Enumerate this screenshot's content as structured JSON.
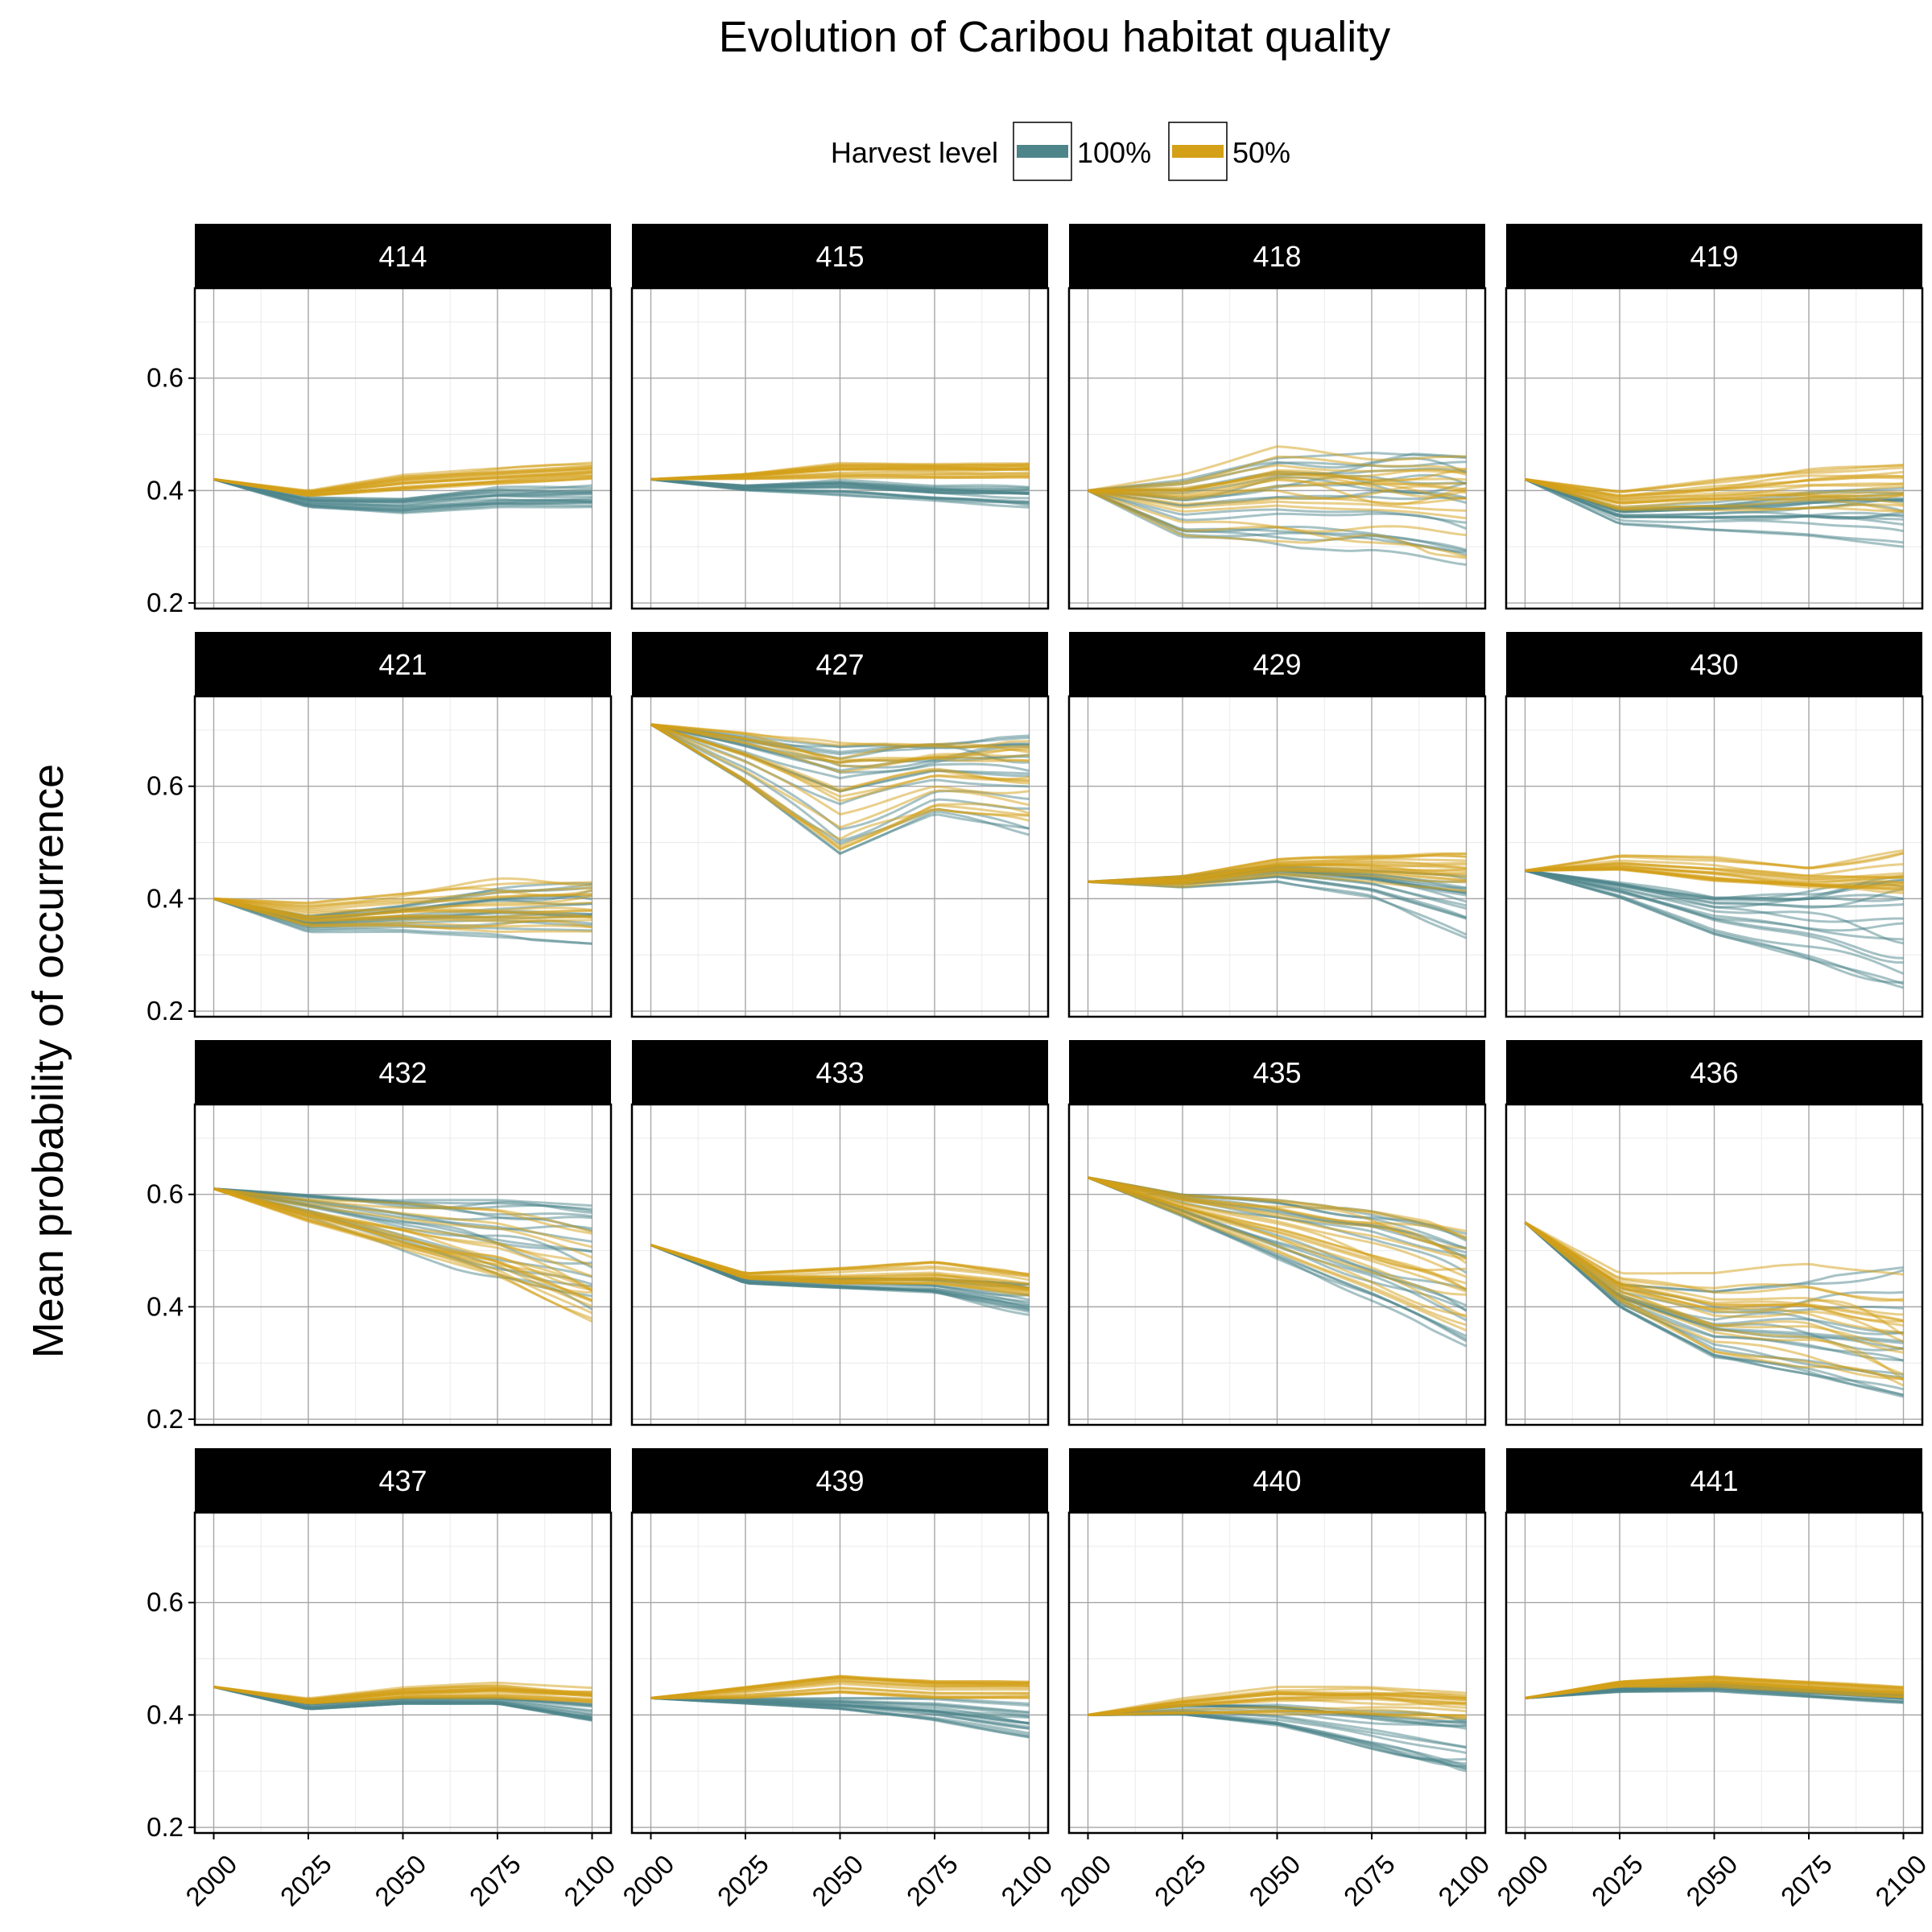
{
  "chart_data": {
    "type": "line",
    "title": "Evolution of Caribou habitat quality",
    "ylabel": "Mean probability of occurrence",
    "xlabel": "",
    "legend": {
      "title": "Harvest level",
      "position": "top",
      "entries": [
        {
          "name": "100%",
          "color": "#4d858b"
        },
        {
          "name": "50%",
          "color": "#d4a017"
        }
      ]
    },
    "x_ticks": [
      2000,
      2025,
      2050,
      2075,
      2100
    ],
    "y_ticks": [
      0.2,
      0.4,
      0.6
    ],
    "xlim": [
      1995,
      2105
    ],
    "ylim": [
      0.19,
      0.76
    ],
    "grid": true,
    "facets": [
      {
        "label": "414",
        "series": [
          {
            "name": "100%",
            "x": [
              2000,
              2025,
              2050,
              2075,
              2100
            ],
            "y_low": [
              0.42,
              0.37,
              0.36,
              0.37,
              0.37
            ],
            "y_high": [
              0.42,
              0.39,
              0.39,
              0.41,
              0.41
            ]
          },
          {
            "name": "50%",
            "x": [
              2000,
              2025,
              2050,
              2075,
              2100
            ],
            "y_low": [
              0.42,
              0.39,
              0.4,
              0.41,
              0.42
            ],
            "y_high": [
              0.42,
              0.4,
              0.43,
              0.44,
              0.45
            ]
          }
        ]
      },
      {
        "label": "415",
        "series": [
          {
            "name": "100%",
            "x": [
              2000,
              2025,
              2050,
              2075,
              2100
            ],
            "y_low": [
              0.42,
              0.4,
              0.39,
              0.38,
              0.37
            ],
            "y_high": [
              0.42,
              0.41,
              0.42,
              0.41,
              0.41
            ]
          },
          {
            "name": "50%",
            "x": [
              2000,
              2025,
              2050,
              2075,
              2100
            ],
            "y_low": [
              0.42,
              0.42,
              0.42,
              0.42,
              0.42
            ],
            "y_high": [
              0.42,
              0.43,
              0.45,
              0.45,
              0.45
            ]
          }
        ]
      },
      {
        "label": "418",
        "series": [
          {
            "name": "100%",
            "x": [
              2000,
              2025,
              2050,
              2075,
              2100
            ],
            "y_low": [
              0.4,
              0.31,
              0.3,
              0.29,
              0.26
            ],
            "y_high": [
              0.4,
              0.42,
              0.46,
              0.47,
              0.46
            ]
          },
          {
            "name": "50%",
            "x": [
              2000,
              2025,
              2050,
              2075,
              2100
            ],
            "y_low": [
              0.4,
              0.32,
              0.31,
              0.3,
              0.28
            ],
            "y_high": [
              0.4,
              0.44,
              0.49,
              0.48,
              0.48
            ]
          }
        ]
      },
      {
        "label": "419",
        "series": [
          {
            "name": "100%",
            "x": [
              2000,
              2025,
              2050,
              2075,
              2100
            ],
            "y_low": [
              0.42,
              0.34,
              0.33,
              0.32,
              0.3
            ],
            "y_high": [
              0.42,
              0.37,
              0.38,
              0.4,
              0.41
            ]
          },
          {
            "name": "50%",
            "x": [
              2000,
              2025,
              2050,
              2075,
              2100
            ],
            "y_low": [
              0.42,
              0.36,
              0.36,
              0.36,
              0.35
            ],
            "y_high": [
              0.42,
              0.4,
              0.42,
              0.44,
              0.45
            ]
          }
        ]
      },
      {
        "label": "421",
        "series": [
          {
            "name": "100%",
            "x": [
              2000,
              2025,
              2050,
              2075,
              2100
            ],
            "y_low": [
              0.4,
              0.34,
              0.34,
              0.33,
              0.32
            ],
            "y_high": [
              0.4,
              0.37,
              0.39,
              0.42,
              0.43
            ]
          },
          {
            "name": "50%",
            "x": [
              2000,
              2025,
              2050,
              2075,
              2100
            ],
            "y_low": [
              0.4,
              0.35,
              0.35,
              0.34,
              0.34
            ],
            "y_high": [
              0.4,
              0.4,
              0.42,
              0.44,
              0.45
            ]
          }
        ]
      },
      {
        "label": "427",
        "series": [
          {
            "name": "100%",
            "x": [
              2000,
              2025,
              2050,
              2075,
              2100
            ],
            "y_low": [
              0.71,
              0.6,
              0.46,
              0.54,
              0.51
            ],
            "y_high": [
              0.71,
              0.69,
              0.67,
              0.68,
              0.69
            ]
          },
          {
            "name": "50%",
            "x": [
              2000,
              2025,
              2050,
              2075,
              2100
            ],
            "y_low": [
              0.71,
              0.6,
              0.47,
              0.55,
              0.53
            ],
            "y_high": [
              0.71,
              0.7,
              0.68,
              0.68,
              0.68
            ]
          }
        ]
      },
      {
        "label": "429",
        "series": [
          {
            "name": "100%",
            "x": [
              2000,
              2025,
              2050,
              2075,
              2100
            ],
            "y_low": [
              0.43,
              0.42,
              0.43,
              0.4,
              0.33
            ],
            "y_high": [
              0.43,
              0.44,
              0.46,
              0.45,
              0.44
            ]
          },
          {
            "name": "50%",
            "x": [
              2000,
              2025,
              2050,
              2075,
              2100
            ],
            "y_low": [
              0.43,
              0.42,
              0.44,
              0.43,
              0.41
            ],
            "y_high": [
              0.43,
              0.44,
              0.47,
              0.48,
              0.48
            ]
          }
        ]
      },
      {
        "label": "430",
        "series": [
          {
            "name": "100%",
            "x": [
              2000,
              2025,
              2050,
              2075,
              2100
            ],
            "y_low": [
              0.45,
              0.4,
              0.33,
              0.28,
              0.23
            ],
            "y_high": [
              0.45,
              0.43,
              0.41,
              0.42,
              0.44
            ]
          },
          {
            "name": "50%",
            "x": [
              2000,
              2025,
              2050,
              2075,
              2100
            ],
            "y_low": [
              0.45,
              0.45,
              0.43,
              0.42,
              0.41
            ],
            "y_high": [
              0.45,
              0.48,
              0.48,
              0.46,
              0.49
            ]
          }
        ]
      },
      {
        "label": "432",
        "series": [
          {
            "name": "100%",
            "x": [
              2000,
              2025,
              2050,
              2075,
              2100
            ],
            "y_low": [
              0.61,
              0.56,
              0.5,
              0.44,
              0.39
            ],
            "y_high": [
              0.61,
              0.6,
              0.59,
              0.59,
              0.58
            ]
          },
          {
            "name": "50%",
            "x": [
              2000,
              2025,
              2050,
              2075,
              2100
            ],
            "y_low": [
              0.61,
              0.55,
              0.5,
              0.45,
              0.37
            ],
            "y_high": [
              0.61,
              0.6,
              0.6,
              0.6,
              0.58
            ]
          }
        ]
      },
      {
        "label": "433",
        "series": [
          {
            "name": "100%",
            "x": [
              2000,
              2025,
              2050,
              2075,
              2100
            ],
            "y_low": [
              0.51,
              0.44,
              0.43,
              0.42,
              0.38
            ],
            "y_high": [
              0.51,
              0.45,
              0.45,
              0.45,
              0.44
            ]
          },
          {
            "name": "50%",
            "x": [
              2000,
              2025,
              2050,
              2075,
              2100
            ],
            "y_low": [
              0.51,
              0.45,
              0.44,
              0.44,
              0.42
            ],
            "y_high": [
              0.51,
              0.46,
              0.47,
              0.48,
              0.46
            ]
          }
        ]
      },
      {
        "label": "435",
        "series": [
          {
            "name": "100%",
            "x": [
              2000,
              2025,
              2050,
              2075,
              2100
            ],
            "y_low": [
              0.63,
              0.56,
              0.48,
              0.41,
              0.33
            ],
            "y_high": [
              0.63,
              0.6,
              0.59,
              0.57,
              0.53
            ]
          },
          {
            "name": "50%",
            "x": [
              2000,
              2025,
              2050,
              2075,
              2100
            ],
            "y_low": [
              0.63,
              0.56,
              0.49,
              0.42,
              0.35
            ],
            "y_high": [
              0.63,
              0.6,
              0.59,
              0.57,
              0.54
            ]
          }
        ]
      },
      {
        "label": "436",
        "series": [
          {
            "name": "100%",
            "x": [
              2000,
              2025,
              2050,
              2075,
              2100
            ],
            "y_low": [
              0.55,
              0.4,
              0.31,
              0.28,
              0.24
            ],
            "y_high": [
              0.55,
              0.44,
              0.43,
              0.45,
              0.47
            ]
          },
          {
            "name": "50%",
            "x": [
              2000,
              2025,
              2050,
              2075,
              2100
            ],
            "y_low": [
              0.55,
              0.41,
              0.32,
              0.29,
              0.25
            ],
            "y_high": [
              0.55,
              0.46,
              0.46,
              0.48,
              0.46
            ]
          }
        ]
      },
      {
        "label": "437",
        "series": [
          {
            "name": "100%",
            "x": [
              2000,
              2025,
              2050,
              2075,
              2100
            ],
            "y_low": [
              0.45,
              0.41,
              0.42,
              0.42,
              0.39
            ],
            "y_high": [
              0.45,
              0.42,
              0.43,
              0.43,
              0.42
            ]
          },
          {
            "name": "50%",
            "x": [
              2000,
              2025,
              2050,
              2075,
              2100
            ],
            "y_low": [
              0.45,
              0.42,
              0.43,
              0.43,
              0.42
            ],
            "y_high": [
              0.45,
              0.43,
              0.45,
              0.46,
              0.45
            ]
          }
        ]
      },
      {
        "label": "439",
        "series": [
          {
            "name": "100%",
            "x": [
              2000,
              2025,
              2050,
              2075,
              2100
            ],
            "y_low": [
              0.43,
              0.42,
              0.41,
              0.39,
              0.36
            ],
            "y_high": [
              0.43,
              0.43,
              0.43,
              0.43,
              0.42
            ]
          },
          {
            "name": "50%",
            "x": [
              2000,
              2025,
              2050,
              2075,
              2100
            ],
            "y_low": [
              0.43,
              0.43,
              0.44,
              0.43,
              0.43
            ],
            "y_high": [
              0.43,
              0.45,
              0.47,
              0.46,
              0.46
            ]
          }
        ]
      },
      {
        "label": "440",
        "series": [
          {
            "name": "100%",
            "x": [
              2000,
              2025,
              2050,
              2075,
              2100
            ],
            "y_low": [
              0.4,
              0.4,
              0.38,
              0.34,
              0.3
            ],
            "y_high": [
              0.4,
              0.42,
              0.42,
              0.41,
              0.4
            ]
          },
          {
            "name": "50%",
            "x": [
              2000,
              2025,
              2050,
              2075,
              2100
            ],
            "y_low": [
              0.4,
              0.4,
              0.4,
              0.4,
              0.39
            ],
            "y_high": [
              0.4,
              0.43,
              0.45,
              0.45,
              0.44
            ]
          }
        ]
      },
      {
        "label": "441",
        "series": [
          {
            "name": "100%",
            "x": [
              2000,
              2025,
              2050,
              2075,
              2100
            ],
            "y_low": [
              0.43,
              0.44,
              0.44,
              0.43,
              0.42
            ],
            "y_high": [
              0.43,
              0.45,
              0.46,
              0.45,
              0.44
            ]
          },
          {
            "name": "50%",
            "x": [
              2000,
              2025,
              2050,
              2075,
              2100
            ],
            "y_low": [
              0.43,
              0.45,
              0.45,
              0.44,
              0.43
            ],
            "y_high": [
              0.43,
              0.46,
              0.47,
              0.46,
              0.45
            ]
          }
        ]
      }
    ]
  }
}
